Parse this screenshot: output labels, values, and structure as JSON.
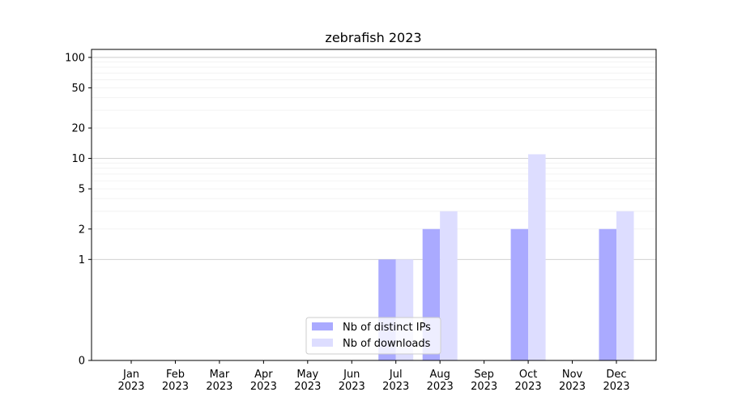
{
  "chart_data": {
    "type": "bar",
    "title": "zebrafish 2023",
    "xlabel": "",
    "ylabel": "",
    "yscale": "symlog",
    "ylim": [
      0,
      120
    ],
    "yticks": [
      0,
      1,
      2,
      5,
      10,
      20,
      50,
      100
    ],
    "grid": "major and minor horizontal",
    "legend_position": "bottom-center",
    "categories": [
      [
        "Jan",
        "2023"
      ],
      [
        "Feb",
        "2023"
      ],
      [
        "Mar",
        "2023"
      ],
      [
        "Apr",
        "2023"
      ],
      [
        "May",
        "2023"
      ],
      [
        "Jun",
        "2023"
      ],
      [
        "Jul",
        "2023"
      ],
      [
        "Aug",
        "2023"
      ],
      [
        "Sep",
        "2023"
      ],
      [
        "Oct",
        "2023"
      ],
      [
        "Nov",
        "2023"
      ],
      [
        "Dec",
        "2023"
      ]
    ],
    "series": [
      {
        "name": "Nb of distinct IPs",
        "color": "#aaaaff",
        "values": [
          0,
          0,
          0,
          0,
          0,
          0,
          1,
          2,
          0,
          2,
          0,
          2
        ]
      },
      {
        "name": "Nb of downloads",
        "color": "#ddddff",
        "values": [
          0,
          0,
          0,
          0,
          0,
          0,
          1,
          3,
          0,
          11,
          0,
          3
        ]
      }
    ]
  }
}
